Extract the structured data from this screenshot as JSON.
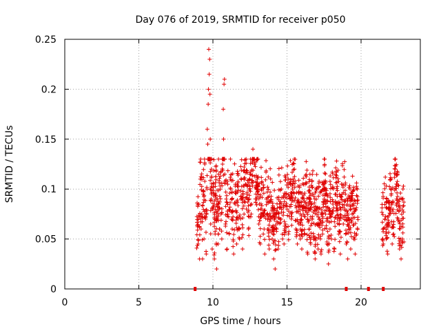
{
  "chart_data": {
    "type": "scatter",
    "title": "Day 076 of 2019, SRMTID for receiver p050",
    "xlabel": "GPS time / hours",
    "ylabel": "SRMTID / TECUs",
    "xlim": [
      0,
      24
    ],
    "ylim": [
      0,
      0.25
    ],
    "xticks": [
      0,
      5,
      10,
      15,
      20
    ],
    "xtick_labels": [
      "0",
      "5",
      "10",
      "15",
      "20"
    ],
    "yticks": [
      0,
      0.05,
      0.1,
      0.15,
      0.2,
      0.25
    ],
    "ytick_labels": [
      "0",
      "0.05",
      "0.1",
      "0.15",
      "0.2",
      "0.25"
    ],
    "grid": true,
    "marker": "plus",
    "color": "#e00000",
    "data_gap_markers_x": [
      8.8,
      19.0,
      20.5,
      21.5
    ],
    "series": [
      {
        "name": "SRMTID",
        "segments": [
          {
            "x_start": 8.9,
            "x_end": 19.8
          },
          {
            "x_start": 21.4,
            "x_end": 22.9
          }
        ],
        "x": [
          9.0,
          9.05,
          9.1,
          9.15,
          9.2,
          9.25,
          9.3,
          9.35,
          9.4,
          9.45,
          9.5,
          9.55,
          9.6,
          9.62,
          9.65,
          9.68,
          9.7,
          9.72,
          9.75,
          9.78,
          9.8,
          9.82,
          9.85,
          9.88,
          9.9,
          9.95,
          10.0,
          10.05,
          10.1,
          10.15,
          10.2,
          10.25,
          10.3,
          10.35,
          10.4,
          10.45,
          10.5,
          10.55,
          10.6,
          10.65,
          10.7,
          10.72,
          10.75,
          10.78,
          10.8,
          10.85,
          10.9,
          10.95,
          11.0,
          11.1,
          11.2,
          11.3,
          11.4,
          11.5,
          11.6,
          11.7,
          11.8,
          11.9,
          12.0,
          12.1,
          12.2,
          12.3,
          12.4,
          12.5,
          12.6,
          12.7,
          12.8,
          12.9,
          13.0,
          13.1,
          13.2,
          13.3,
          13.4,
          13.5,
          13.6,
          13.7,
          13.8,
          13.9,
          14.0,
          14.1,
          14.2,
          14.3,
          14.4,
          14.5,
          14.6,
          14.7,
          14.8,
          14.9,
          15.0,
          15.1,
          15.2,
          15.3,
          15.4,
          15.5,
          15.6,
          15.7,
          15.8,
          15.9,
          16.0,
          16.1,
          16.2,
          16.3,
          16.4,
          16.5,
          16.6,
          16.7,
          16.8,
          16.9,
          17.0,
          17.1,
          17.2,
          17.3,
          17.4,
          17.5,
          17.6,
          17.7,
          17.8,
          17.9,
          18.0,
          18.1,
          18.2,
          18.3,
          18.4,
          18.5,
          18.6,
          18.7,
          18.8,
          18.9,
          19.0,
          19.1,
          19.2,
          19.3,
          19.4,
          19.5,
          19.6,
          19.7,
          21.5,
          21.6,
          21.7,
          21.8,
          21.9,
          22.0,
          22.1,
          22.2,
          22.3,
          22.4,
          22.5,
          22.6,
          22.7,
          22.8
        ],
        "y": [
          0.045,
          0.085,
          0.03,
          0.11,
          0.06,
          0.075,
          0.03,
          0.095,
          0.05,
          0.125,
          0.07,
          0.035,
          0.1,
          0.16,
          0.145,
          0.185,
          0.2,
          0.24,
          0.215,
          0.23,
          0.195,
          0.15,
          0.065,
          0.09,
          0.12,
          0.04,
          0.08,
          0.105,
          0.03,
          0.055,
          0.09,
          0.02,
          0.07,
          0.045,
          0.085,
          0.06,
          0.1,
          0.075,
          0.05,
          0.125,
          0.18,
          0.15,
          0.205,
          0.21,
          0.115,
          0.065,
          0.09,
          0.04,
          0.075,
          0.055,
          0.1,
          0.06,
          0.035,
          0.085,
          0.045,
          0.07,
          0.05,
          0.09,
          0.04,
          0.075,
          0.105,
          0.095,
          0.06,
          0.115,
          0.085,
          0.14,
          0.125,
          0.095,
          0.11,
          0.065,
          0.045,
          0.08,
          0.055,
          0.035,
          0.09,
          0.06,
          0.04,
          0.07,
          0.05,
          0.03,
          0.02,
          0.06,
          0.04,
          0.085,
          0.07,
          0.05,
          0.045,
          0.065,
          0.08,
          0.055,
          0.09,
          0.07,
          0.105,
          0.12,
          0.06,
          0.045,
          0.065,
          0.05,
          0.04,
          0.075,
          0.055,
          0.085,
          0.035,
          0.06,
          0.045,
          0.07,
          0.05,
          0.03,
          0.08,
          0.04,
          0.065,
          0.035,
          0.055,
          0.1,
          0.075,
          0.045,
          0.025,
          0.06,
          0.05,
          0.085,
          0.04,
          0.095,
          0.07,
          0.055,
          0.035,
          0.105,
          0.065,
          0.08,
          0.045,
          0.03,
          0.06,
          0.04,
          0.075,
          0.05,
          0.035,
          0.055,
          0.045,
          0.07,
          0.05,
          0.035,
          0.065,
          0.08,
          0.045,
          0.055,
          0.12,
          0.09,
          0.07,
          0.04,
          0.03,
          0.05
        ]
      }
    ]
  }
}
